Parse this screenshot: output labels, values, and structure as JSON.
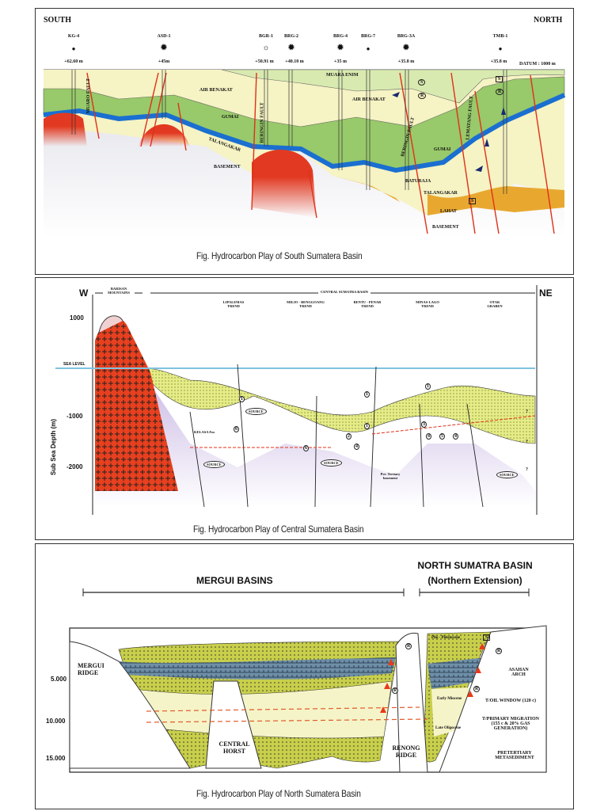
{
  "figures": [
    {
      "caption": "Fig. Hydrocarbon Play of South Sumatera Basin",
      "direction_left": "SOUTH",
      "direction_right": "NORTH",
      "datum": "DATUM : 1000 m",
      "wells": [
        {
          "name": "KG-4",
          "elevation": "+62.60 m",
          "symbol": "dry-hole"
        },
        {
          "name": "ASD-1",
          "elevation": "+45m",
          "symbol": "gas-well"
        },
        {
          "name": "BGR-1",
          "elevation": "+50.91 m",
          "symbol": "gas-show"
        },
        {
          "name": "BRG-2",
          "elevation": "+40.10 m",
          "symbol": "gas-well"
        },
        {
          "name": "BRG-4",
          "elevation": "+35 m",
          "symbol": "gas-well"
        },
        {
          "name": "BRG-7",
          "elevation": "",
          "symbol": "dry-hole"
        },
        {
          "name": "BRG-3A",
          "elevation": "+35.8 m",
          "symbol": "gas-well"
        },
        {
          "name": "TMB-1",
          "elevation": "+35.8 m",
          "symbol": "dry-hole"
        }
      ],
      "formations": {
        "muara_enim": "MUARA ENIM",
        "air_benakat_1": "AIR BENAKAT",
        "air_benakat_2": "AIR BENAKAT",
        "gumai_1": "GUMAI",
        "gumai_2": "GUMAI",
        "talangakar_1": "TALANGAKAR",
        "talangakar_2": "TALANGAKAR",
        "baturaja": "BATURAJA",
        "lahat": "LAHAT",
        "basement_1": "BASEMENT",
        "basement_2": "BASEMENT"
      },
      "faults": [
        "MUARO FAULT",
        "BERINGIN FAULT",
        "BERINGIN FAULT",
        "LEMATANG FAULT"
      ],
      "markers": {
        "source": "S",
        "reservoir": "R"
      },
      "colors": {
        "muara_enim": "#d9eab0",
        "air_benakat": "#f6f3c4",
        "gumai": "#98c96a",
        "baturaja": "#1a6fd0",
        "talangakar": "#f7ee7a",
        "lahat": "#e8a830",
        "basement": "#dcdde6",
        "igneous": "#e23a22"
      }
    },
    {
      "caption": "Fig. Hydrocarbon Play of Central Sumatera Basin",
      "direction_left": "W",
      "direction_right": "NE",
      "regions": {
        "barisan": "BARISAN MOUNTAINS",
        "central": "CENTRAL SUMATRA BASIN"
      },
      "trends": [
        "LIPALEMAS TREND",
        "MILIO - BENGGOANG TREND",
        "BENTU - PENAR TREND",
        "MINAS-LAGO TREND",
        "OTAK GRABEN"
      ],
      "y_axis": {
        "label": "Sub Sea Depth (m)",
        "ticks": [
          "1000",
          "-1000",
          "-2000"
        ],
        "sea_level": "SEA LEVEL"
      },
      "labels": {
        "kelasa": "KELASA Fm",
        "source": "SOURCE",
        "basement": "Pre. Tertiary basement",
        "question": "?"
      },
      "play_numbers": [
        "1",
        "1",
        "1",
        "1",
        "2",
        "3",
        "4",
        "4",
        "4",
        "5",
        "6",
        "6"
      ],
      "colors": {
        "sediment": "#eaf08a",
        "basement": "#cfc2e6",
        "granite": "#e8401f",
        "sea_level": "#7fc2e0"
      }
    },
    {
      "caption": "Fig. Hydrocarbon Play of North Sumatera Basin",
      "regions": {
        "mergui": "MERGUI BASINS",
        "north": "NORTH SUMATRA BASIN",
        "north_sub": "(Northern Extension)"
      },
      "labels": {
        "mergui_ridge": "MERGUI RIDGE",
        "central_horst": "CENTRAL HORST",
        "renong_ridge": "RENONG RIDGE",
        "asahan_arch": "ASAHAN ARCH",
        "oil_window": "T/OIL WINDOW (120 c)",
        "primary_migration": "T/PRIMARY MIGRATION (155 c & 20% GAS GENERATION)",
        "pretertiary": "PRETERTIARY METASEDIMENT",
        "plio": "Plio - Pleistocene",
        "early_miocene": "Early Miocene",
        "late_oligocene": "Late Oligocene"
      },
      "depth_ticks": [
        "5.000",
        "10.000",
        "15.000"
      ],
      "markers": {
        "source": "S",
        "reservoir": "R"
      },
      "colors": {
        "sandstone": "#c8cf4a",
        "carbonate": "#6f8fa8",
        "fill": "#f5f4c8",
        "migration": "#e83a1a"
      }
    }
  ]
}
